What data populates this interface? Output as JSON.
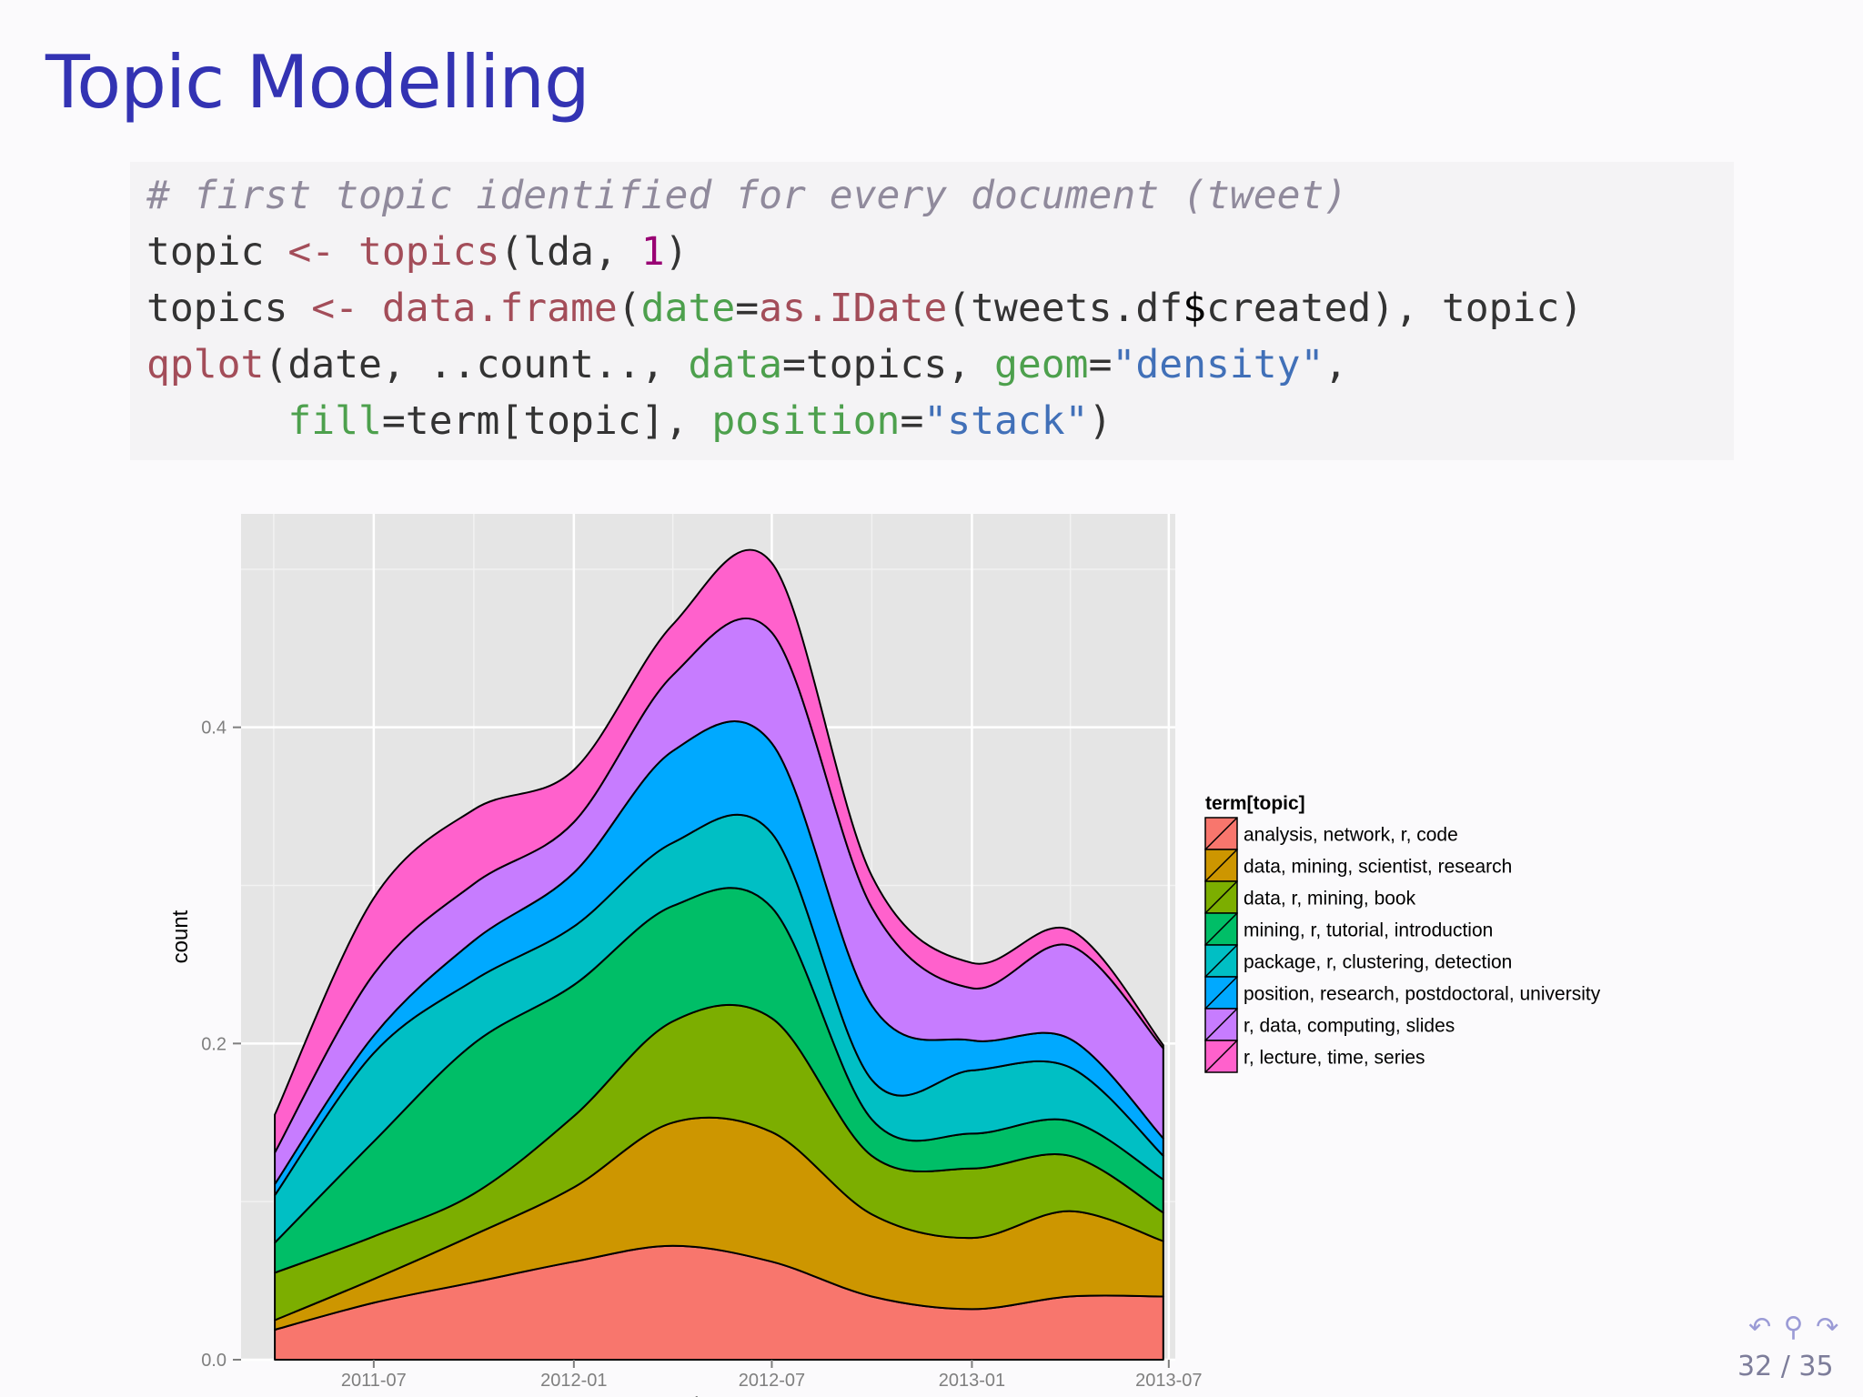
{
  "slide": {
    "title": "Topic Modelling",
    "page_current": "32",
    "page_total": "35",
    "page_separator": "/",
    "nav_icons": "↶ ⚲ ↷"
  },
  "code": {
    "comment": "# first topic identified for every document (tweet)",
    "line2": {
      "a": "topic ",
      "op": "<-",
      "sp": " ",
      "fn": "topics",
      "b": "(lda, ",
      "num": "1",
      "c": ")"
    },
    "line3": {
      "a": "topics ",
      "op": "<-",
      "sp": " ",
      "fn1": "data.frame",
      "p1": "(",
      "arg1": "date",
      "eq1": "=",
      "fn2": "as.IDate",
      "p2": "(tweets.df",
      "dollar": "$",
      "p3": "created), topic)"
    },
    "line4": {
      "fn": "qplot",
      "a": "(date, ..count.., ",
      "arg1": "data",
      "b": "=topics, ",
      "arg2": "geom",
      "eq": "=",
      "str": "\"density\"",
      "c": ","
    },
    "line5": {
      "indent": "      ",
      "arg1": "fill",
      "a": "=term[topic], ",
      "arg2": "position",
      "eq": "=",
      "str": "\"stack\"",
      "b": ")"
    }
  },
  "chart_data": {
    "type": "area",
    "stacked": true,
    "xlabel": "date",
    "ylabel": "count",
    "x_ticks": [
      "2011-07",
      "2012-01",
      "2012-07",
      "2013-01",
      "2013-07"
    ],
    "x_tick_dates": [
      "2011-07-01",
      "2012-01-01",
      "2012-07-01",
      "2013-01-01",
      "2013-07-01"
    ],
    "y_ticks": [
      0.0,
      0.2,
      0.4
    ],
    "y_tick_labels": [
      "0.0",
      "0.2",
      "0.4"
    ],
    "ylim": [
      0,
      0.535
    ],
    "xlim": [
      "2011-03-01",
      "2013-07-07"
    ],
    "grid": true,
    "legend_title": "term[topic]",
    "legend_position": "right",
    "x": [
      "2011-04-01",
      "2011-07-01",
      "2011-10-01",
      "2012-01-01",
      "2012-04-01",
      "2012-07-01",
      "2012-10-01",
      "2013-01-01",
      "2013-04-01",
      "2013-06-26"
    ],
    "series": [
      {
        "name": "analysis, network, r, code",
        "color": "#F8766D",
        "values": [
          0.019,
          0.036,
          0.049,
          0.062,
          0.072,
          0.062,
          0.04,
          0.032,
          0.04,
          0.04
        ]
      },
      {
        "name": "data, mining, scientist, research",
        "color": "#CD9600",
        "values": [
          0.006,
          0.015,
          0.03,
          0.047,
          0.078,
          0.082,
          0.052,
          0.045,
          0.054,
          0.035
        ]
      },
      {
        "name": "data, r, mining, book",
        "color": "#7CAE00",
        "values": [
          0.03,
          0.027,
          0.026,
          0.045,
          0.064,
          0.072,
          0.037,
          0.044,
          0.035,
          0.018
        ]
      },
      {
        "name": "mining, r, tutorial, introduction",
        "color": "#00BE67",
        "values": [
          0.019,
          0.06,
          0.095,
          0.083,
          0.073,
          0.07,
          0.023,
          0.022,
          0.022,
          0.021
        ]
      },
      {
        "name": "package, r, clustering, detection",
        "color": "#00BFC4",
        "values": [
          0.03,
          0.056,
          0.04,
          0.037,
          0.04,
          0.047,
          0.025,
          0.04,
          0.034,
          0.015
        ]
      },
      {
        "name": "position, research, postdoctoral, university",
        "color": "#00A9FF",
        "values": [
          0.007,
          0.011,
          0.025,
          0.034,
          0.058,
          0.057,
          0.047,
          0.019,
          0.018,
          0.011
        ]
      },
      {
        "name": "r, data, computing, slides",
        "color": "#C77CFF",
        "values": [
          0.02,
          0.039,
          0.036,
          0.032,
          0.048,
          0.07,
          0.062,
          0.033,
          0.059,
          0.057
        ]
      },
      {
        "name": "r, lecture, time, series",
        "color": "#FF61CC",
        "values": [
          0.024,
          0.048,
          0.047,
          0.033,
          0.032,
          0.044,
          0.02,
          0.016,
          0.01,
          0.002
        ]
      }
    ]
  }
}
